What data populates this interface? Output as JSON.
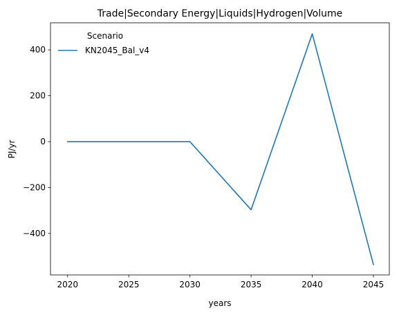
{
  "chart_data": {
    "type": "line",
    "title": "Trade|Secondary Energy|Liquids|Hydrogen|Volume",
    "xlabel": "years",
    "ylabel": "PJ/yr",
    "x": [
      2020,
      2025,
      2030,
      2035,
      2040,
      2045
    ],
    "xticks": [
      2020,
      2025,
      2030,
      2035,
      2040,
      2045
    ],
    "yticks": [
      -400,
      -200,
      0,
      200,
      400
    ],
    "ytick_labels": [
      "−400",
      "−200",
      "0",
      "200",
      "400"
    ],
    "xlim": [
      2018.6,
      2046.3
    ],
    "ylim": [
      -581,
      518
    ],
    "grid": false,
    "legend": {
      "title": "Scenario",
      "placement": "upper-left"
    },
    "series": [
      {
        "name": "KN2045_Bal_v4",
        "color": "#1f77b4",
        "values": [
          0,
          0,
          0,
          -297,
          470,
          -536
        ]
      }
    ]
  }
}
